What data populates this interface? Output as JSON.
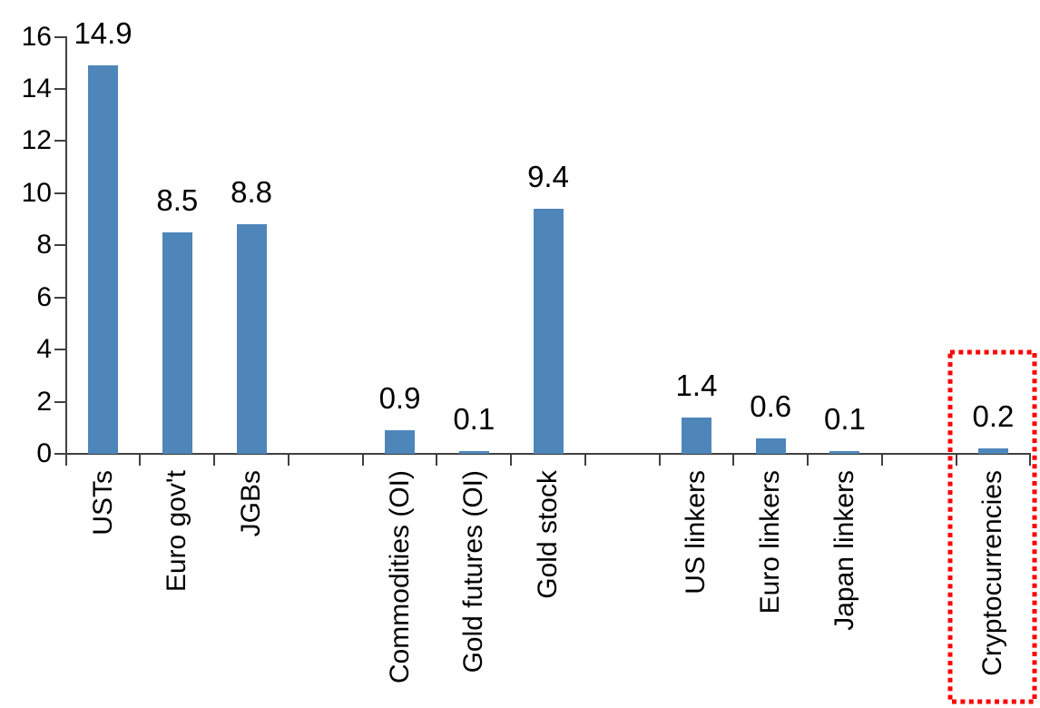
{
  "chart_data": {
    "type": "bar",
    "title": "",
    "xlabel": "",
    "ylabel": "",
    "categories": [
      "USTs",
      "Euro gov't",
      "JGBs",
      "",
      "Commodities (OI)",
      "Gold futures (OI)",
      "Gold stock",
      "",
      "US linkers",
      "Euro linkers",
      "Japan linkers",
      "",
      "Cryptocurrencies"
    ],
    "values": [
      14.9,
      8.5,
      8.8,
      null,
      0.9,
      0.1,
      9.4,
      null,
      1.4,
      0.6,
      0.1,
      null,
      0.2
    ],
    "value_labels": [
      "14.9",
      "8.5",
      "8.8",
      "",
      "0.9",
      "0.1",
      "9.4",
      "",
      "1.4",
      "0.6",
      "0.1",
      "",
      "0.2"
    ],
    "yticks": [
      "0",
      "2",
      "4",
      "6",
      "8",
      "10",
      "12",
      "14",
      "16"
    ],
    "ylim": [
      0,
      16
    ],
    "grid": "off",
    "legend": "none",
    "bar_color": "#4E86BA",
    "axis_color": "#404040",
    "text_color": "#000000",
    "highlight": {
      "category": "Cryptocurrencies",
      "box_color": "#FF0000",
      "box_style": "dotted"
    }
  }
}
